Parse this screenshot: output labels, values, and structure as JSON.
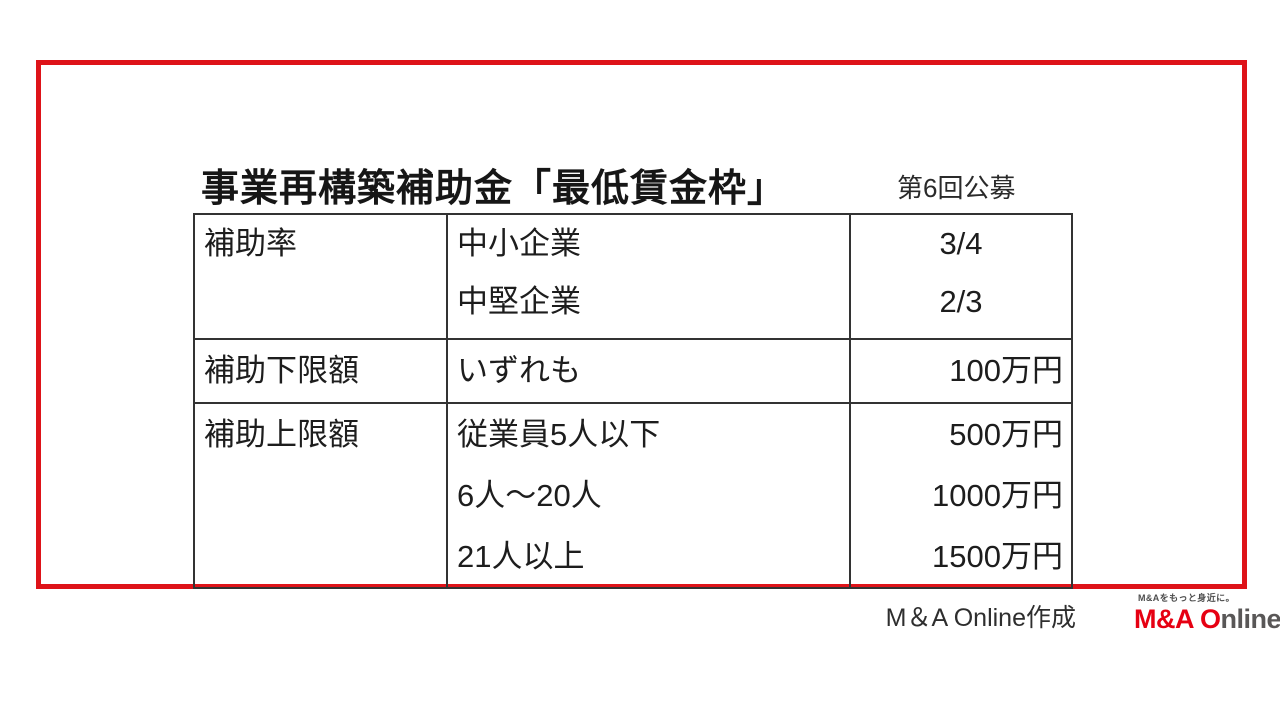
{
  "page": {
    "title": "事業再構築補助金「最低賃金枠」",
    "round_label": "第6回公募",
    "attribution": "M＆A Online作成"
  },
  "table": {
    "rows": [
      {
        "label": "補助率",
        "items": [
          {
            "condition": "中小企業",
            "value": "3/4"
          },
          {
            "condition": "中堅企業",
            "value": "2/3"
          }
        ]
      },
      {
        "label": "補助下限額",
        "items": [
          {
            "condition": "いずれも",
            "value": "100万円"
          }
        ]
      },
      {
        "label": "補助上限額",
        "items": [
          {
            "condition": "従業員5人以下",
            "value": "500万円"
          },
          {
            "condition": "6人〜20人",
            "value": "1000万円"
          },
          {
            "condition": "21人以上",
            "value": "1500万円"
          }
        ]
      }
    ]
  },
  "logo": {
    "tagline": "M&Aをもっと身近に。",
    "brand_red": "M&A O",
    "brand_gray": "nline"
  },
  "colors": {
    "frame_red": "#de1319",
    "table_border": "#333333",
    "logo_red": "#e60012",
    "logo_gray": "#595757"
  }
}
